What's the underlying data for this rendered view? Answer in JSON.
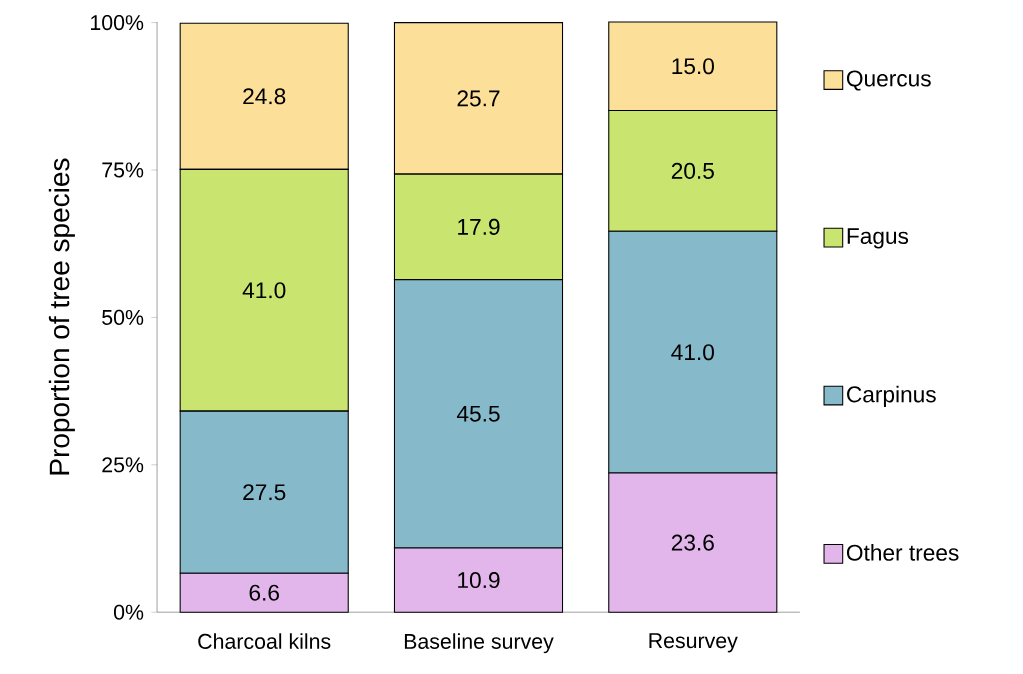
{
  "chart_data": {
    "type": "bar",
    "stacked": true,
    "ylabel": "Proportion of tree species",
    "categories": [
      "Charcoal kilns",
      "Baseline survey",
      "Resurvey"
    ],
    "series": [
      {
        "name": "Other trees",
        "color": "#e2b6ea",
        "values": [
          6.6,
          10.9,
          23.6
        ],
        "value_labels": [
          "6.6",
          "10.9",
          "23.6"
        ]
      },
      {
        "name": "Carpinus",
        "color": "#86b9ca",
        "values": [
          27.5,
          45.5,
          41.0
        ],
        "value_labels": [
          "27.5",
          "45.5",
          "41.0"
        ]
      },
      {
        "name": "Fagus",
        "color": "#c9e46f",
        "values": [
          41.0,
          17.9,
          20.5
        ],
        "value_labels": [
          "41.0",
          "17.9",
          "20.5"
        ]
      },
      {
        "name": "Quercus",
        "color": "#fce09a",
        "values": [
          24.8,
          25.7,
          15.0
        ],
        "value_labels": [
          "24.8",
          "25.7",
          "15.0"
        ]
      }
    ],
    "ylim": [
      0,
      100.1
    ],
    "yticks": [
      {
        "value": 0,
        "label": "0%"
      },
      {
        "value": 25,
        "label": "25%"
      },
      {
        "value": 50,
        "label": "50%"
      },
      {
        "value": 75,
        "label": "75%"
      },
      {
        "value": 100,
        "label": "100%"
      }
    ],
    "grid": false,
    "legend": "right"
  }
}
